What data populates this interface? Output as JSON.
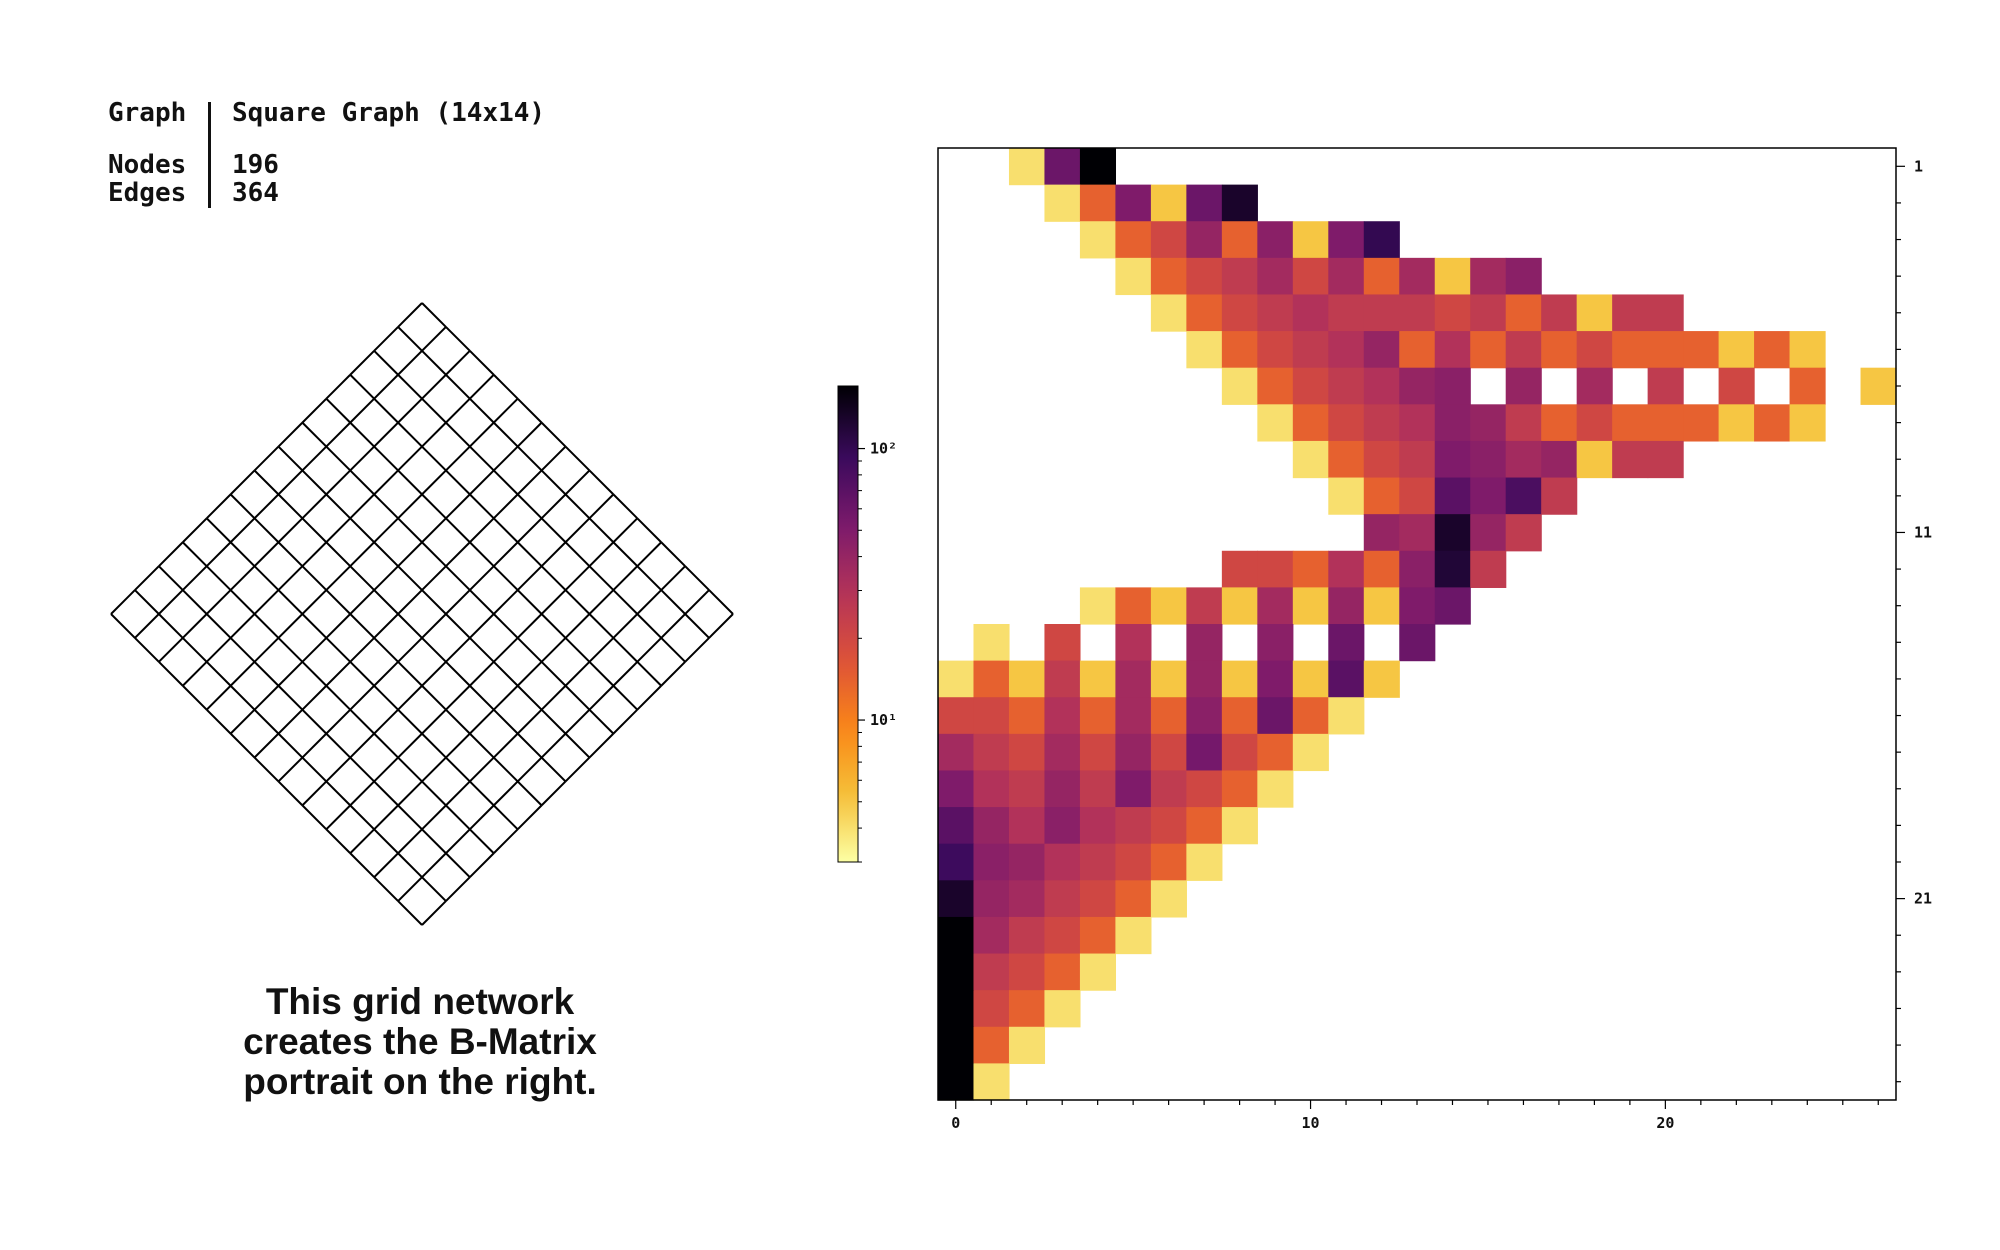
{
  "info": {
    "graph_label": "Graph",
    "graph_value": "Square Graph (14x14)",
    "nodes_label": "Nodes",
    "nodes_value": "196",
    "edges_label": "Edges",
    "edges_value": "364"
  },
  "grid_graph": {
    "rows": 14,
    "cols": 14,
    "line_color": "#000000"
  },
  "caption": {
    "line1": "This grid network",
    "line2": "creates the B-Matrix",
    "line3": "portrait on the right."
  },
  "chart_data": {
    "type": "heatmap",
    "colormap": "inferno_r",
    "color_scale": "log",
    "colorbar_ticks": [
      {
        "value": 10,
        "label": "10¹"
      },
      {
        "value": 100,
        "label": "10²"
      }
    ],
    "colorbar_range": [
      3,
      170
    ],
    "x_ticks": [
      0,
      10,
      20
    ],
    "x_range": [
      -0.5,
      26.5
    ],
    "y_ticks": [
      1,
      11,
      21
    ],
    "y_tick_side": "right",
    "y_range": [
      0.5,
      26.5
    ],
    "rows": [
      {
        "y": 1,
        "start": 2,
        "values": [
          4,
          60,
          170
        ]
      },
      {
        "y": 2,
        "start": 3,
        "values": [
          4,
          14,
          50,
          5,
          60,
          130
        ]
      },
      {
        "y": 3,
        "start": 4,
        "values": [
          4,
          14,
          20,
          40,
          14,
          45,
          5,
          50,
          100
        ]
      },
      {
        "y": 4,
        "start": 5,
        "values": [
          4,
          14,
          20,
          25,
          35,
          20,
          35,
          14,
          35,
          5,
          35,
          45
        ]
      },
      {
        "y": 5,
        "start": 6,
        "values": [
          4,
          14,
          20,
          25,
          30,
          25,
          25,
          25,
          20,
          25,
          14,
          25,
          5,
          25,
          25
        ]
      },
      {
        "y": 6,
        "start": 7,
        "values": [
          4,
          14,
          20,
          25,
          30,
          40,
          14,
          30,
          14,
          25,
          14,
          20,
          14,
          14,
          14,
          5,
          14,
          5
        ]
      },
      {
        "y": 7,
        "start": 8,
        "values": [
          4,
          14,
          20,
          25,
          30,
          40,
          45,
          null,
          40,
          null,
          35,
          null,
          25,
          null,
          20,
          null,
          14,
          null,
          5
        ]
      },
      {
        "y": 8,
        "start": 9,
        "values": [
          4,
          14,
          20,
          25,
          30,
          45,
          40,
          25,
          14,
          20,
          14,
          14,
          14,
          5,
          14,
          5
        ]
      },
      {
        "y": 9,
        "start": 10,
        "values": [
          4,
          14,
          20,
          25,
          50,
          45,
          35,
          40,
          5,
          25,
          25
        ]
      },
      {
        "y": 10,
        "start": 11,
        "values": [
          4,
          14,
          20,
          70,
          50,
          80,
          25
        ]
      },
      {
        "y": 11,
        "start": 12,
        "values": [
          40,
          35,
          130,
          40,
          25
        ]
      },
      {
        "y": 12,
        "start": 8,
        "values": [
          20,
          20,
          14,
          30,
          14,
          45,
          120,
          25
        ]
      },
      {
        "y": 13,
        "start": 4,
        "values": [
          4,
          14,
          5,
          25,
          5,
          35,
          5,
          40,
          5,
          50,
          60
        ]
      },
      {
        "y": 14,
        "start": 1,
        "values": [
          4,
          null,
          20,
          null,
          30,
          null,
          40,
          null,
          45,
          null,
          60,
          null,
          60
        ]
      },
      {
        "y": 15,
        "start": 0,
        "values": [
          4,
          14,
          5,
          25,
          5,
          35,
          5,
          40,
          5,
          50,
          5,
          70,
          5
        ]
      },
      {
        "y": 16,
        "start": 0,
        "values": [
          20,
          20,
          14,
          30,
          14,
          35,
          14,
          45,
          14,
          60,
          14,
          4
        ]
      },
      {
        "y": 17,
        "start": 0,
        "values": [
          35,
          25,
          20,
          35,
          20,
          40,
          20,
          55,
          20,
          14,
          4
        ]
      },
      {
        "y": 18,
        "start": 0,
        "values": [
          50,
          30,
          25,
          40,
          25,
          50,
          25,
          20,
          14,
          4
        ]
      },
      {
        "y": 19,
        "start": 0,
        "values": [
          70,
          40,
          30,
          45,
          30,
          25,
          20,
          14,
          4
        ]
      },
      {
        "y": 20,
        "start": 0,
        "values": [
          90,
          45,
          40,
          30,
          25,
          20,
          14,
          4
        ]
      },
      {
        "y": 21,
        "start": 0,
        "values": [
          130,
          40,
          35,
          25,
          20,
          14,
          4
        ]
      },
      {
        "y": 22,
        "start": 0,
        "values": [
          170,
          35,
          25,
          20,
          14,
          4
        ]
      },
      {
        "y": 23,
        "start": 0,
        "values": [
          200,
          25,
          20,
          14,
          4
        ]
      },
      {
        "y": 24,
        "start": 0,
        "values": [
          250,
          20,
          14,
          4
        ]
      },
      {
        "y": 25,
        "start": 0,
        "values": [
          300,
          14,
          4
        ]
      },
      {
        "y": 26,
        "start": 0,
        "values": [
          350,
          4
        ]
      }
    ]
  }
}
